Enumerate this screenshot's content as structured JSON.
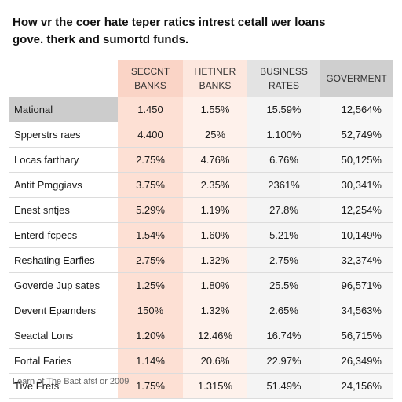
{
  "title": {
    "line1": "How ᴠr the coer hate teper ratics intrest cetall wer loans",
    "line2": "gove. therk and sumortd funds."
  },
  "footnote": "Learn of The Bact afst or 2009",
  "colors": {
    "header_col0": "#fad4c6",
    "header_col1": "#fde7de",
    "header_col2": "#e3e3e3",
    "header_col3": "#cfcfcf"
  },
  "chart_data": {
    "type": "table",
    "columns": [
      [
        "SECCNT",
        "BANKS"
      ],
      [
        "HETINER",
        "BANKS"
      ],
      [
        "BUSINESS",
        "RATES"
      ],
      [
        "GOVERMENT"
      ]
    ],
    "rows": [
      {
        "label": "Mational",
        "values": [
          "1.450",
          "1.55%",
          "15.59%",
          "12,564%"
        ]
      },
      {
        "label": "Spperstrs raes",
        "values": [
          "4.400",
          "25%",
          "1.100%",
          "52,749%"
        ]
      },
      {
        "label": "Locas farthary",
        "values": [
          "2.75%",
          "4.76%",
          "6.76%",
          "50,125%"
        ]
      },
      {
        "label": "Antit Pmggiavs",
        "values": [
          "3.75%",
          "2.35%",
          "2361%",
          "30,341%"
        ]
      },
      {
        "label": "Enest sntjes",
        "values": [
          "5.29%",
          "1.19%",
          "27.8%",
          "12,254%"
        ]
      },
      {
        "label": "Enterd-fcpecs",
        "values": [
          "1.54%",
          "1.60%",
          "5.21%",
          "10,149%"
        ]
      },
      {
        "label": "Reshating Earfies",
        "values": [
          "2.75%",
          "1.32%",
          "2.75%",
          "32,374%"
        ]
      },
      {
        "label": "Goverde Jup sates",
        "values": [
          "1.25%",
          "1.80%",
          "25.5%",
          "96,571%"
        ]
      },
      {
        "label": "Devent Epamders",
        "values": [
          "150%",
          "1.32%",
          "2.65%",
          "34,563%"
        ]
      },
      {
        "label": "Seactal Lons",
        "values": [
          "1.20%",
          "12.46%",
          "16.74%",
          "56,715%"
        ]
      },
      {
        "label": "Fortal Faries",
        "values": [
          "1.14%",
          "20.6%",
          "22.97%",
          "26,349%"
        ]
      },
      {
        "label": "Tive Frets",
        "values": [
          "1.75%",
          "1.315%",
          "51.49%",
          "24,156%"
        ]
      }
    ]
  }
}
